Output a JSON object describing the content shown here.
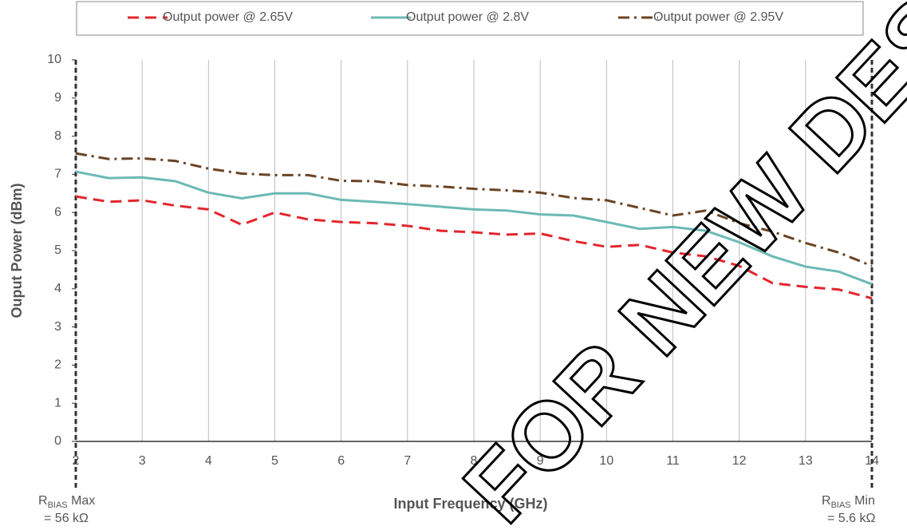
{
  "chart_data": {
    "type": "line",
    "xlabel": "Input Frequency (GHz)",
    "ylabel": "Ouput Power (dBm)",
    "x": [
      2,
      2.5,
      3,
      3.5,
      4,
      4.5,
      5,
      5.5,
      6,
      6.5,
      7,
      7.5,
      8,
      8.5,
      9,
      9.5,
      10,
      10.5,
      11,
      11.5,
      12,
      12.5,
      13,
      13.5,
      14
    ],
    "series": [
      {
        "name": "Output power @ 2.65V",
        "color": "#e3262d",
        "dash": "dashed",
        "values": [
          6.42,
          6.28,
          6.32,
          6.18,
          6.08,
          5.68,
          6.0,
          5.82,
          5.75,
          5.72,
          5.65,
          5.52,
          5.48,
          5.42,
          5.45,
          5.25,
          5.1,
          5.15,
          4.95,
          4.85,
          4.6,
          4.15,
          4.05,
          3.98,
          3.75
        ]
      },
      {
        "name": "Output power @ 2.8V",
        "color": "#6bb9b5",
        "dash": "solid",
        "values": [
          7.07,
          6.9,
          6.92,
          6.82,
          6.52,
          6.37,
          6.5,
          6.5,
          6.33,
          6.28,
          6.22,
          6.15,
          6.08,
          6.05,
          5.95,
          5.92,
          5.75,
          5.57,
          5.62,
          5.52,
          5.22,
          4.85,
          4.58,
          4.45,
          4.12
        ]
      },
      {
        "name": "Output power @ 2.95V",
        "color": "#6b4423",
        "dash": "dashdot",
        "values": [
          7.55,
          7.4,
          7.42,
          7.35,
          7.15,
          7.02,
          6.98,
          6.98,
          6.83,
          6.82,
          6.72,
          6.68,
          6.62,
          6.58,
          6.52,
          6.38,
          6.32,
          6.12,
          5.92,
          6.05,
          5.72,
          5.5,
          5.2,
          4.95,
          4.6
        ]
      }
    ],
    "xlim": [
      2,
      14
    ],
    "xticks": [
      2,
      3,
      4,
      5,
      6,
      7,
      8,
      9,
      10,
      11,
      12,
      13,
      14
    ],
    "ylim": [
      0,
      10
    ],
    "yticks": [
      0,
      1,
      2,
      3,
      4,
      5,
      6,
      7,
      8,
      9,
      10
    ],
    "grid": "x",
    "annotations": [
      {
        "main": "R",
        "sub": "BIAS",
        "rest": " Max",
        "line2": "= 56 kΩ"
      },
      {
        "main": "R",
        "sub": "BIAS",
        "rest": " Min",
        "line2": "= 5.6 kΩ"
      }
    ],
    "watermark": "FOR NEW DESIGNS"
  }
}
